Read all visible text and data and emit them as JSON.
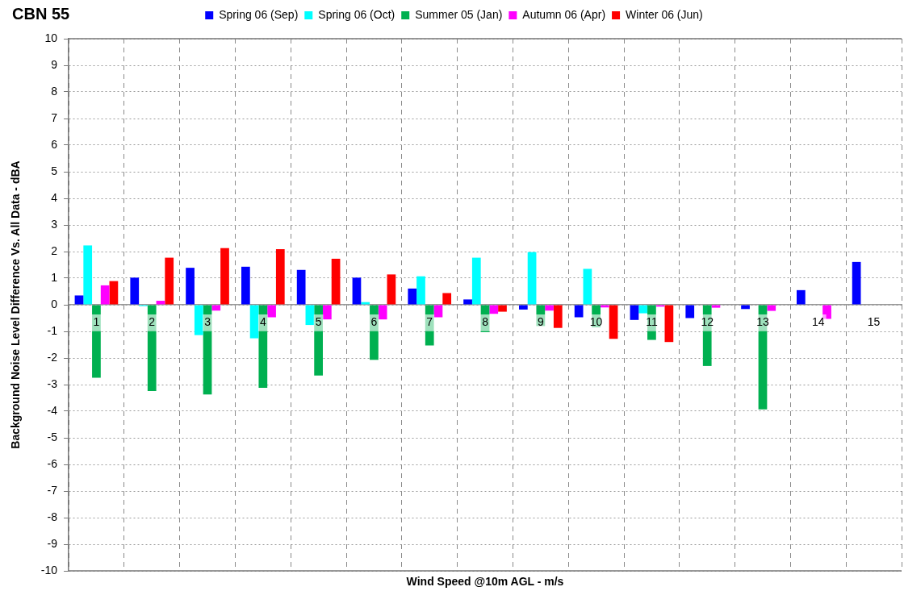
{
  "chart_data": {
    "type": "bar",
    "title": "CBN 55",
    "xlabel": "Wind Speed @10m AGL - m/s",
    "ylabel": "Background Noise Level Difference Vs. All Data - dBA",
    "categories": [
      "1",
      "2",
      "3",
      "4",
      "5",
      "6",
      "7",
      "8",
      "9",
      "10",
      "11",
      "12",
      "13",
      "14",
      "15"
    ],
    "series": [
      {
        "name": "Spring 06 (Sep)",
        "color": "#0000ff",
        "values": [
          0.35,
          1.02,
          1.39,
          1.43,
          1.31,
          1.02,
          0.61,
          0.2,
          -0.18,
          -0.47,
          -0.57,
          -0.5,
          -0.16,
          0.55,
          1.61
        ]
      },
      {
        "name": "Spring 06 (Oct)",
        "color": "#00ffff",
        "values": [
          2.23,
          -0.05,
          -1.14,
          -1.26,
          -0.76,
          0.1,
          1.07,
          1.77,
          1.98,
          1.35,
          -0.32,
          null,
          null,
          null,
          null
        ]
      },
      {
        "name": "Summer 05 (Jan)",
        "color": "#00b050",
        "values": [
          -2.74,
          -3.24,
          -3.37,
          -3.12,
          -2.66,
          -2.07,
          -1.53,
          -1.03,
          -0.8,
          -0.85,
          -1.32,
          -2.3,
          -3.93,
          null,
          null
        ]
      },
      {
        "name": "Autumn 06 (Apr)",
        "color": "#ff00ff",
        "values": [
          0.73,
          0.15,
          -0.22,
          -0.47,
          -0.55,
          -0.55,
          -0.47,
          -0.34,
          -0.22,
          -0.1,
          -0.07,
          -0.11,
          -0.23,
          -0.53,
          null
        ]
      },
      {
        "name": "Winter 06 (Jun)",
        "color": "#ff0000",
        "values": [
          0.89,
          1.77,
          2.13,
          2.09,
          1.73,
          1.14,
          0.44,
          -0.26,
          -0.87,
          -1.28,
          -1.4,
          null,
          null,
          null,
          null
        ]
      }
    ],
    "ylim": [
      -10,
      10
    ],
    "yticks": [
      -10,
      -9,
      -8,
      -7,
      -6,
      -5,
      -4,
      -3,
      -2,
      -1,
      0,
      1,
      2,
      3,
      4,
      5,
      6,
      7,
      8,
      9,
      10
    ],
    "grid": true,
    "legend": "top"
  }
}
